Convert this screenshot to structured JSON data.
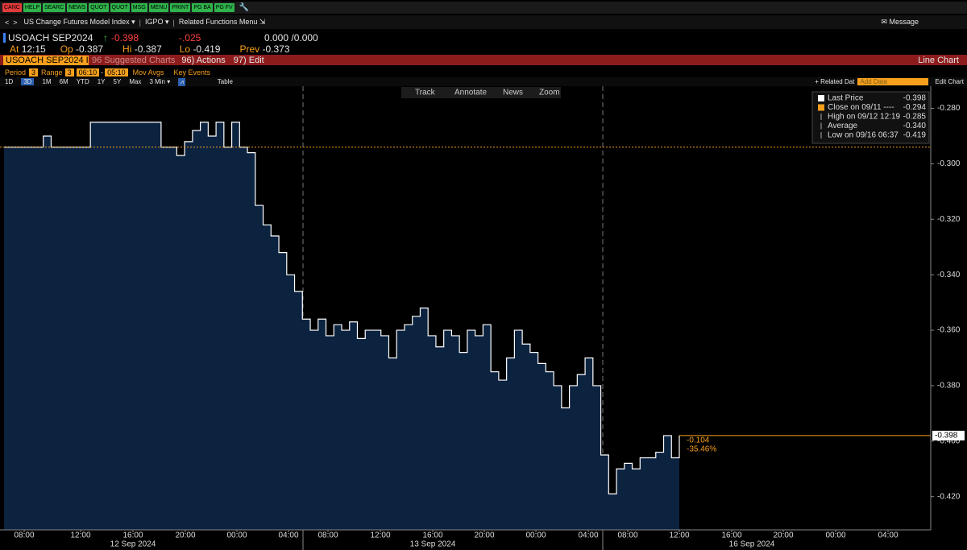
{
  "toolbar": {
    "buttons": [
      "CANC",
      "HELP",
      "SEARC",
      "NEWS",
      "QUOT",
      "QUOT",
      "MSG",
      "MENU",
      "PRINT",
      "PG BA",
      "PG FV"
    ]
  },
  "nav": {
    "title": "US Change Futures Model Index ▾",
    "function": "IGPO ▾",
    "related": "Related Functions Menu ⇲",
    "message": "Message"
  },
  "quote": {
    "ticker": "USOACH SEP2024",
    "last": "-0.398",
    "change": "-.025",
    "bid_ask": "0.000 /0.000",
    "at_label": "At",
    "at": "12:15",
    "op_label": "Op",
    "op": "-0.387",
    "hi_label": "Hi",
    "hi": "-0.387",
    "lo_label": "Lo",
    "lo": "-0.419",
    "prev_label": "Prev",
    "prev": "-0.373"
  },
  "menu": {
    "security": "USOACH SEP2024 In",
    "suggested": "96 Suggested Charts",
    "actions": "96) Actions",
    "edit": "97) Edit",
    "chart_type": "Line Chart"
  },
  "controls": {
    "period_label": "Period",
    "period": "3",
    "range_label": "Range",
    "range": "3",
    "start": "06:10",
    "dash": "-",
    "end": "05:10",
    "mov_avgs": "Mov Avgs",
    "key_events": "Key Events",
    "periods": [
      "1D",
      "3D",
      "1M",
      "6M",
      "YTD",
      "1Y",
      "5Y",
      "Max"
    ],
    "frequency": "3 Min ▾",
    "table": "Table",
    "related_data": "+ Related Dat",
    "add_data": "Add Data",
    "edit_chart": "Edit Chart"
  },
  "chart_tools": [
    "Track",
    "Annotate",
    "News",
    "Zoom"
  ],
  "chart_data": {
    "type": "line",
    "area_color": "#0c2340",
    "series": [
      {
        "name": "Last Price",
        "color": "#ffffff",
        "values": [
          -0.294,
          -0.294,
          -0.294,
          -0.294,
          -0.294,
          -0.29,
          -0.294,
          -0.294,
          -0.294,
          -0.294,
          -0.294,
          -0.285,
          -0.285,
          -0.285,
          -0.285,
          -0.285,
          -0.285,
          -0.285,
          -0.285,
          -0.285,
          -0.294,
          -0.294,
          -0.297,
          -0.292,
          -0.288,
          -0.285,
          -0.29,
          -0.285,
          -0.294,
          -0.285,
          -0.294,
          -0.296,
          -0.315,
          -0.322,
          -0.326,
          -0.332,
          -0.34,
          -0.346,
          -0.356,
          -0.36,
          -0.356,
          -0.362,
          -0.358,
          -0.36,
          -0.357,
          -0.363,
          -0.36,
          -0.36,
          -0.362,
          -0.37,
          -0.36,
          -0.358,
          -0.355,
          -0.352,
          -0.362,
          -0.366,
          -0.36,
          -0.362,
          -0.368,
          -0.36,
          -0.362,
          -0.358,
          -0.375,
          -0.378,
          -0.37,
          -0.36,
          -0.365,
          -0.368,
          -0.372,
          -0.375,
          -0.38,
          -0.388,
          -0.38,
          -0.376,
          -0.37,
          -0.38,
          -0.405,
          -0.419,
          -0.41,
          -0.408,
          -0.41,
          -0.406,
          -0.406,
          -0.404,
          -0.398,
          -0.406,
          -0.398
        ]
      }
    ],
    "ylim": [
      -0.432,
      -0.272
    ],
    "yticks": [
      {
        "value": -0.28,
        "label": "-0.280"
      },
      {
        "value": -0.3,
        "label": "-0.300"
      },
      {
        "value": -0.32,
        "label": "-0.320"
      },
      {
        "value": -0.34,
        "label": "-0.340"
      },
      {
        "value": -0.36,
        "label": "-0.360"
      },
      {
        "value": -0.38,
        "label": "-0.380"
      },
      {
        "value": -0.4,
        "label": "-0.400"
      },
      {
        "value": -0.42,
        "label": "-0.420"
      }
    ],
    "x_labels": [
      "08:00",
      "12:00",
      "16:00",
      "20:00",
      "00:00",
      "04:00",
      "08:00",
      "12:00",
      "16:00",
      "20:00",
      "00:00",
      "04:00",
      "08:00",
      "12:00",
      "16:00",
      "20:00",
      "00:00",
      "04:00"
    ],
    "date_labels": [
      "12 Sep 2024",
      "13 Sep 2024",
      "16 Sep 2024"
    ],
    "legend": [
      {
        "label": "Close on 09/11 ----",
        "value": -0.294,
        "color": "#f8a01b"
      },
      {
        "label": "High on 09/12 12:19",
        "value": -0.285
      },
      {
        "label": "Average",
        "value": {
          "value": -0.34,
          "label": "-0.340"
        }
      },
      {
        "label": "Low on 09/16 06:37",
        "value": -0.419
      }
    ],
    "annotations": [
      "-0.104",
      "-35.46%"
    ]
  }
}
